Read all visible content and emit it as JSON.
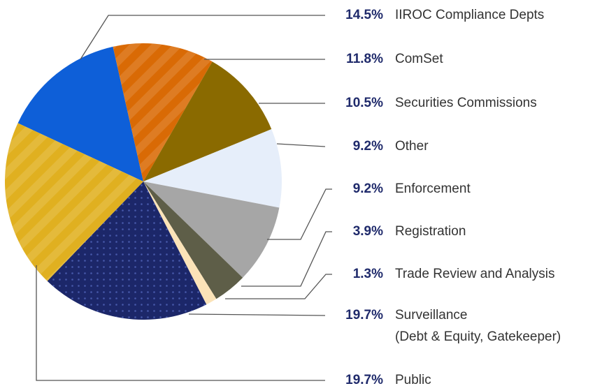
{
  "chart_data": {
    "type": "pie",
    "categories": [
      "IIROC Compliance Depts",
      "ComSet",
      "Securities Commissions",
      "Other",
      "Enforcement",
      "Registration",
      "Trade Review and Analysis",
      "Surveillance (Debt & Equity, Gatekeeper)",
      "Public"
    ],
    "values": [
      14.5,
      11.8,
      10.5,
      9.2,
      9.2,
      3.9,
      1.3,
      19.7,
      19.7
    ],
    "value_labels": [
      "14.5%",
      "11.8%",
      "10.5%",
      "9.2%",
      "9.2%",
      "3.9%",
      "1.3%",
      "19.7%",
      "19.7%"
    ],
    "colors": [
      "#0e5fd8",
      "#d96a05",
      "#8a6a00",
      "#e6eefa",
      "#a6a6a6",
      "#5e5e48",
      "#fbe3b8",
      "#1c2769",
      "#e0b020"
    ]
  }
}
